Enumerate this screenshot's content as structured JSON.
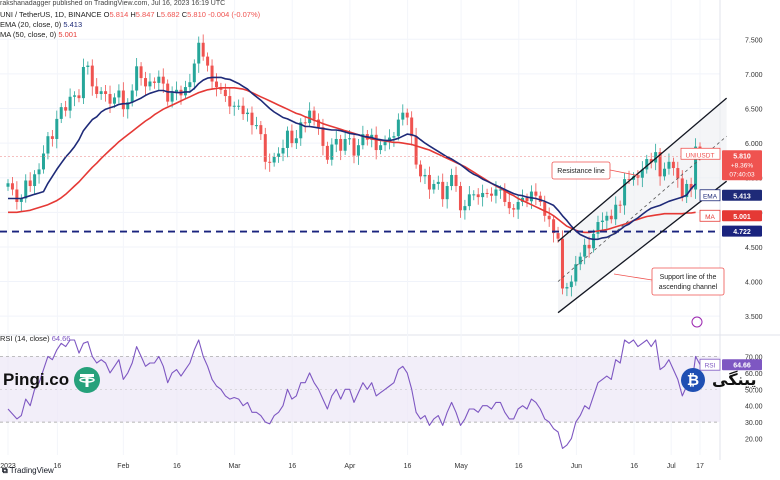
{
  "header": {
    "publisher": "rakshanadagger published on TradingView.com, Jul 16, 2023 16:19 UTC",
    "symbol_line": "UNI / TetherUS, 1D, BINANCE",
    "ohlc": {
      "o_label": "O",
      "o": "5.814",
      "h_label": "H",
      "h": "5.847",
      "l_label": "L",
      "l": "5.682",
      "c_label": "C",
      "c": "5.810",
      "change": "-0.004 (-0.07%)"
    },
    "ema_legend": {
      "label": "EMA (20, close, 0)",
      "value": "5.413"
    },
    "sma_legend": {
      "label": "MA (50, close, 0)",
      "value": "5.001"
    },
    "rsi_legend": {
      "label": "RSI (14, close)",
      "value": "64.66"
    }
  },
  "watermark": {
    "left_text": "Pingi.co",
    "right_text": "پینگی"
  },
  "footer": {
    "brand": "TradingView"
  },
  "colors": {
    "up": "#26a69a",
    "down": "#ef5350",
    "ema": "#1e2a78",
    "sma": "#e53935",
    "rsi": "#7e57c2",
    "support": "#1a237e"
  },
  "chart_data": [
    {
      "type": "candlestick",
      "title": "UNI / TetherUS, 1D, BINANCE",
      "ylim": [
        3.3,
        7.75
      ],
      "y_ticks": [
        "7.500",
        "7.000",
        "6.500",
        "6.000",
        "5.500",
        "5.000",
        "4.500",
        "4.000",
        "3.500"
      ],
      "x_ticks": [
        "2023",
        "16",
        "Feb",
        "16",
        "Mar",
        "16",
        "Apr",
        "16",
        "May",
        "16",
        "Jun",
        "16",
        "Jul",
        "17"
      ],
      "price_label": {
        "symbol": "UNIUSDT",
        "price": "5.810",
        "change": "+8.36%",
        "countdown": "07:40:03"
      },
      "ema_label": {
        "name": "EMA",
        "value": "5.413"
      },
      "sma_label": {
        "name": "MA",
        "value": "5.001"
      },
      "support_label": "4.722",
      "support_level": 4.722,
      "annotations": [
        {
          "text": "Resistance line",
          "target": "upper channel line"
        },
        {
          "text": "Support line of the ascending channel",
          "lines": [
            "Support line of the",
            "ascending channel"
          ]
        }
      ],
      "channel": {
        "lower": {
          "from": [
            3.55,
            "Jun 8"
          ],
          "to": [
            5.45,
            "Jul 17"
          ]
        },
        "upper": {
          "from": [
            4.58,
            "Jun 8"
          ],
          "to": [
            6.65,
            "Jul 17"
          ]
        },
        "middle_dashed": {
          "from": [
            4.0,
            "Jun 8"
          ],
          "to": [
            6.1,
            "Jul 17"
          ]
        }
      },
      "series": {
        "close": [
          5.42,
          5.33,
          5.15,
          5.2,
          5.46,
          5.38,
          5.55,
          5.62,
          5.85,
          6.1,
          6.06,
          6.35,
          6.52,
          6.47,
          6.67,
          6.69,
          6.65,
          7.1,
          7.12,
          6.82,
          6.71,
          6.75,
          6.71,
          6.57,
          6.66,
          6.76,
          6.49,
          6.59,
          6.76,
          7.11,
          6.94,
          6.82,
          6.89,
          6.87,
          6.96,
          6.86,
          6.6,
          6.73,
          6.77,
          6.69,
          6.81,
          6.88,
          7.15,
          7.45,
          7.25,
          7.12,
          6.89,
          6.81,
          6.77,
          6.68,
          6.53,
          6.54,
          6.54,
          6.42,
          6.44,
          6.26,
          6.26,
          6.13,
          5.73,
          5.72,
          5.8,
          5.85,
          5.93,
          6.18,
          6.0,
          6.07,
          6.3,
          6.29,
          6.47,
          6.34,
          6.23,
          5.96,
          5.76,
          5.98,
          6.06,
          5.89,
          6.06,
          6.07,
          5.82,
          5.97,
          6.13,
          6.05,
          6.12,
          5.9,
          5.97,
          6.02,
          6.08,
          6.1,
          6.34,
          6.44,
          6.37,
          6.1,
          5.69,
          5.52,
          5.54,
          5.33,
          5.41,
          5.44,
          5.19,
          5.38,
          5.54,
          5.38,
          5.03,
          5.09,
          5.26,
          5.26,
          5.22,
          5.28,
          5.27,
          5.24,
          5.33,
          5.33,
          5.15,
          5.06,
          5.04,
          5.15,
          5.21,
          5.16,
          5.3,
          5.24,
          5.15,
          4.95,
          4.9,
          4.7,
          4.62,
          3.9,
          3.92,
          4.0,
          4.25,
          4.36,
          4.53,
          4.48,
          4.69,
          4.86,
          4.88,
          4.95,
          4.9,
          5.11,
          5.1,
          5.48,
          5.47,
          5.52,
          5.5,
          5.62,
          5.77,
          5.72,
          5.87,
          5.52,
          5.63,
          5.73,
          5.64,
          5.49,
          5.22,
          5.41,
          5.33,
          5.95,
          5.81
        ],
        "ema20": [
          5.2,
          5.2,
          5.2,
          5.2,
          5.22,
          5.24,
          5.26,
          5.28,
          5.3,
          5.42,
          5.52,
          5.62,
          5.71,
          5.8,
          5.87,
          5.95,
          6.05,
          6.18,
          6.26,
          6.34,
          6.38,
          6.45,
          6.49,
          6.51,
          6.53,
          6.56,
          6.57,
          6.57,
          6.59,
          6.62,
          6.65,
          6.69,
          6.72,
          6.74,
          6.76,
          6.76,
          6.74,
          6.74,
          6.73,
          6.73,
          6.74,
          6.74,
          6.79,
          6.86,
          6.91,
          6.94,
          6.95,
          6.95,
          6.95,
          6.93,
          6.92,
          6.89,
          6.86,
          6.82,
          6.78,
          6.72,
          6.67,
          6.62,
          6.56,
          6.5,
          6.45,
          6.41,
          6.37,
          6.35,
          6.32,
          6.29,
          6.27,
          6.24,
          6.24,
          6.23,
          6.22,
          6.21,
          6.2,
          6.19,
          6.19,
          6.18,
          6.16,
          6.14,
          6.13,
          6.12,
          6.1,
          6.09,
          6.08,
          6.06,
          6.05,
          6.04,
          6.04,
          6.05,
          6.07,
          6.1,
          6.13,
          6.12,
          6.1,
          6.05,
          6.0,
          5.96,
          5.92,
          5.88,
          5.84,
          5.8,
          5.77,
          5.73,
          5.69,
          5.64,
          5.59,
          5.55,
          5.52,
          5.48,
          5.45,
          5.42,
          5.39,
          5.36,
          5.33,
          5.3,
          5.27,
          5.25,
          5.24,
          5.22,
          5.21,
          5.2,
          5.18,
          5.16,
          5.13,
          5.1,
          5.03,
          4.95,
          4.88,
          4.8,
          4.73,
          4.68,
          4.65,
          4.62,
          4.61,
          4.61,
          4.63,
          4.64,
          4.67,
          4.7,
          4.75,
          4.8,
          4.83,
          4.88,
          4.92,
          4.97,
          5.02,
          5.06,
          5.08,
          5.1,
          5.13,
          5.16,
          5.18,
          5.2,
          5.22,
          5.25,
          5.34,
          5.41
        ],
        "sma50": [
          5.0,
          5.0,
          5.0,
          5.01,
          5.02,
          5.03,
          5.05,
          5.07,
          5.09,
          5.11,
          5.14,
          5.17,
          5.21,
          5.26,
          5.32,
          5.38,
          5.44,
          5.51,
          5.58,
          5.65,
          5.71,
          5.78,
          5.84,
          5.9,
          5.96,
          6.02,
          6.07,
          6.12,
          6.17,
          6.22,
          6.27,
          6.32,
          6.36,
          6.41,
          6.45,
          6.49,
          6.52,
          6.55,
          6.58,
          6.61,
          6.64,
          6.67,
          6.7,
          6.73,
          6.75,
          6.77,
          6.78,
          6.79,
          6.8,
          6.8,
          6.8,
          6.8,
          6.79,
          6.78,
          6.76,
          6.73,
          6.7,
          6.67,
          6.64,
          6.61,
          6.58,
          6.55,
          6.52,
          6.49,
          6.46,
          6.43,
          6.41,
          6.38,
          6.36,
          6.33,
          6.31,
          6.28,
          6.26,
          6.24,
          6.22,
          6.2,
          6.18,
          6.16,
          6.14,
          6.12,
          6.1,
          6.08,
          6.06,
          6.05,
          6.04,
          6.03,
          6.02,
          6.01,
          6.01,
          6.0,
          5.99,
          5.98,
          5.96,
          5.94,
          5.92,
          5.9,
          5.87,
          5.84,
          5.81,
          5.78,
          5.75,
          5.72,
          5.69,
          5.66,
          5.62,
          5.58,
          5.54,
          5.5,
          5.46,
          5.42,
          5.38,
          5.35,
          5.31,
          5.27,
          5.24,
          5.2,
          5.17,
          5.14,
          5.11,
          5.08,
          5.05,
          5.02,
          4.99,
          4.95,
          4.9,
          4.85,
          4.8,
          4.77,
          4.74,
          4.72,
          4.71,
          4.71,
          4.72,
          4.73,
          4.74,
          4.75,
          4.77,
          4.79,
          4.81,
          4.83,
          4.85,
          4.88,
          4.9,
          4.92,
          4.94,
          4.95,
          4.96,
          4.97,
          4.98,
          4.98,
          4.98,
          4.98,
          4.98,
          4.99,
          4.99,
          5.0
        ],
        "rsi": [
          38,
          35,
          32,
          34,
          44,
          40,
          50,
          54,
          62,
          70,
          68,
          74,
          78,
          76,
          80,
          80,
          72,
          78,
          79,
          70,
          66,
          68,
          66,
          60,
          64,
          68,
          56,
          60,
          66,
          76,
          70,
          64,
          66,
          66,
          70,
          64,
          54,
          60,
          62,
          58,
          62,
          66,
          74,
          80,
          70,
          64,
          56,
          52,
          50,
          46,
          44,
          45,
          44,
          40,
          42,
          36,
          36,
          34,
          30,
          29,
          34,
          36,
          40,
          50,
          44,
          46,
          54,
          54,
          60,
          54,
          50,
          44,
          38,
          46,
          50,
          44,
          50,
          50,
          42,
          48,
          54,
          50,
          54,
          46,
          48,
          50,
          52,
          54,
          62,
          64,
          60,
          50,
          36,
          32,
          34,
          28,
          32,
          34,
          28,
          36,
          42,
          36,
          28,
          32,
          38,
          38,
          36,
          40,
          40,
          38,
          42,
          42,
          36,
          32,
          32,
          38,
          40,
          38,
          44,
          42,
          38,
          32,
          30,
          26,
          24,
          14,
          16,
          20,
          30,
          34,
          40,
          38,
          46,
          54,
          56,
          58,
          56,
          68,
          66,
          80,
          78,
          80,
          76,
          78,
          80,
          76,
          80,
          62,
          64,
          68,
          62,
          56,
          46,
          52,
          50,
          70,
          65
        ]
      },
      "ema_name": "EMA (20, close, 0)",
      "sma_name": "MA (50, close, 0)"
    },
    {
      "type": "line",
      "title": "RSI (14, close)",
      "ylim": [
        10,
        80
      ],
      "y_ticks": [
        "70.00",
        "60.00",
        "50.00",
        "40.00",
        "30.00",
        "20.00"
      ],
      "bands": [
        30,
        70
      ],
      "last_value": "64.66",
      "label": "RSI"
    }
  ]
}
